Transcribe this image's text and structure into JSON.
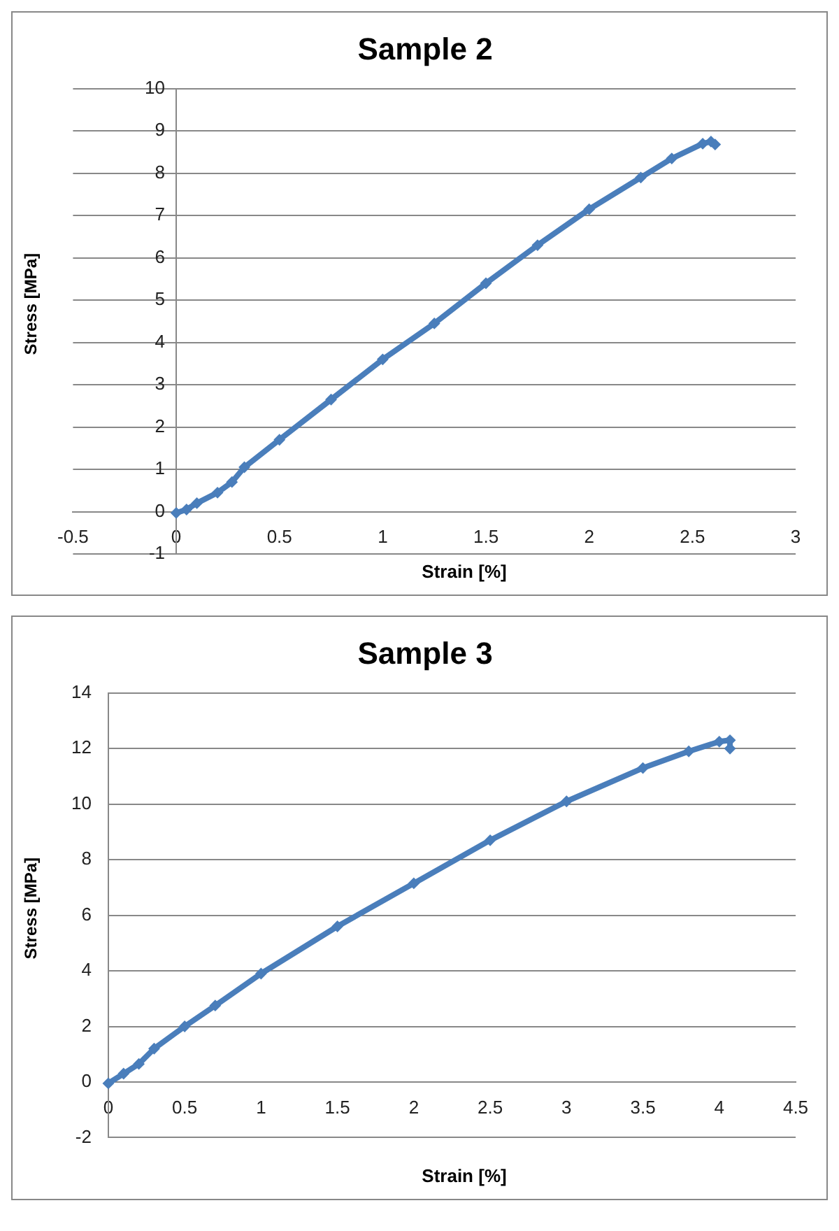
{
  "chart_data": [
    {
      "type": "line",
      "title": "Sample 2",
      "xlabel": "Strain [%]",
      "ylabel": "Stress [MPa]",
      "xlim": [
        -0.5,
        3
      ],
      "xticks": [
        -0.5,
        0,
        0.5,
        1,
        1.5,
        2,
        2.5,
        3
      ],
      "ylim": [
        -1,
        10
      ],
      "yticks": [
        -1,
        0,
        1,
        2,
        3,
        4,
        5,
        6,
        7,
        8,
        9,
        10
      ],
      "grid": "y",
      "marker": "diamond",
      "line_style": "solid",
      "series": [
        {
          "color": "#4a7ebb",
          "x": [
            0,
            0.05,
            0.1,
            0.2,
            0.27,
            0.33,
            0.5,
            0.75,
            1,
            1.25,
            1.5,
            1.75,
            2,
            2.25,
            2.4,
            2.55,
            2.59,
            2.61
          ],
          "values": [
            -0.03,
            0.05,
            0.2,
            0.45,
            0.7,
            1.05,
            1.7,
            2.65,
            3.6,
            4.45,
            5.4,
            6.3,
            7.15,
            7.9,
            8.35,
            8.7,
            8.75,
            8.68
          ]
        }
      ]
    },
    {
      "type": "line",
      "title": "Sample 3",
      "xlabel": "Strain [%]",
      "ylabel": "Stress [MPa]",
      "xlim": [
        0,
        4.5
      ],
      "xticks": [
        0,
        0.5,
        1,
        1.5,
        2,
        2.5,
        3,
        3.5,
        4,
        4.5
      ],
      "ylim": [
        -2,
        14
      ],
      "yticks": [
        -2,
        0,
        2,
        4,
        6,
        8,
        10,
        12,
        14
      ],
      "grid": "y",
      "marker": "diamond",
      "line_style": "solid",
      "series": [
        {
          "color": "#4a7ebb",
          "x": [
            0,
            0.1,
            0.2,
            0.3,
            0.5,
            0.7,
            1,
            1.5,
            2,
            2.5,
            3,
            3.5,
            3.8,
            4.0,
            4.07,
            4.07
          ],
          "values": [
            -0.05,
            0.3,
            0.65,
            1.2,
            2.0,
            2.75,
            3.9,
            5.6,
            7.15,
            8.7,
            10.1,
            11.3,
            11.9,
            12.25,
            12.3,
            12.0
          ]
        }
      ]
    }
  ]
}
